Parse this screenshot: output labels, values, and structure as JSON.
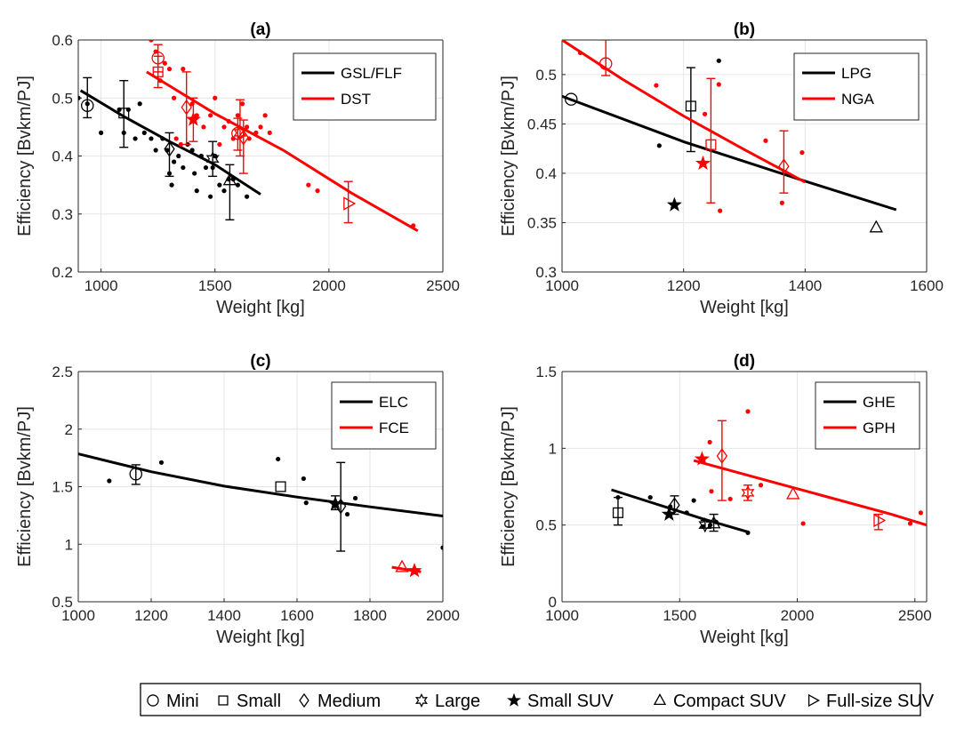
{
  "colors": {
    "black": "#000000",
    "red": "#ff0000",
    "axis": "#262626",
    "grid": "#e6e6e6"
  },
  "shared_legend": {
    "items": [
      {
        "marker": "circle",
        "label": "Mini"
      },
      {
        "marker": "square",
        "label": "Small"
      },
      {
        "marker": "diamond",
        "label": "Medium"
      },
      {
        "marker": "hexagram",
        "label": "Large"
      },
      {
        "marker": "pentagram",
        "label": "Small SUV"
      },
      {
        "marker": "triangle-up",
        "label": "Compact SUV"
      },
      {
        "marker": "triangle-right",
        "label": "Full-size SUV"
      }
    ]
  },
  "chart_data": [
    {
      "type": "scatter",
      "title": "(a)",
      "xlabel": "Weight [kg]",
      "ylabel": "Efficiency [Bvkm/PJ]",
      "xlim": [
        900,
        2500
      ],
      "ylim": [
        0.2,
        0.6
      ],
      "xticks": [
        1000,
        1500,
        2000,
        2500
      ],
      "xtick_labels": [
        "1000",
        "1500",
        "2000",
        "2500"
      ],
      "yticks": [
        0.2,
        0.3,
        0.4,
        0.5,
        0.6
      ],
      "ytick_labels": [
        "0.2",
        "0.3",
        "0.4",
        "0.5",
        "0.6"
      ],
      "grid": true,
      "legend": "top-right",
      "series": [
        {
          "name": "GSL/FLF",
          "color": "#000000",
          "fit": [
            [
              910,
              0.513
            ],
            [
              1100,
              0.468
            ],
            [
              1300,
              0.425
            ],
            [
              1500,
              0.385
            ],
            [
              1700,
              0.334
            ]
          ],
          "points": [
            [
              900,
              0.5
            ],
            [
              940,
              0.49
            ],
            [
              1000,
              0.44
            ],
            [
              1080,
              0.48
            ],
            [
              1100,
              0.44
            ],
            [
              1120,
              0.48
            ],
            [
              1150,
              0.43
            ],
            [
              1170,
              0.49
            ],
            [
              1190,
              0.44
            ],
            [
              1220,
              0.43
            ],
            [
              1240,
              0.41
            ],
            [
              1270,
              0.43
            ],
            [
              1290,
              0.41
            ],
            [
              1300,
              0.37
            ],
            [
              1310,
              0.35
            ],
            [
              1320,
              0.39
            ],
            [
              1340,
              0.4
            ],
            [
              1360,
              0.38
            ],
            [
              1380,
              0.42
            ],
            [
              1400,
              0.41
            ],
            [
              1410,
              0.37
            ],
            [
              1420,
              0.34
            ],
            [
              1440,
              0.4
            ],
            [
              1460,
              0.38
            ],
            [
              1480,
              0.33
            ],
            [
              1490,
              0.38
            ],
            [
              1500,
              0.4
            ],
            [
              1520,
              0.35
            ],
            [
              1540,
              0.34
            ],
            [
              1560,
              0.36
            ],
            [
              1580,
              0.36
            ],
            [
              1600,
              0.35
            ],
            [
              1640,
              0.33
            ]
          ],
          "class_markers": [
            {
              "marker": "circle",
              "x": 940,
              "y": 0.487,
              "lo": 0.466,
              "hi": 0.535
            },
            {
              "marker": "square",
              "x": 1100,
              "y": 0.474,
              "lo": 0.415,
              "hi": 0.53
            },
            {
              "marker": "diamond",
              "x": 1300,
              "y": 0.412,
              "lo": 0.365,
              "hi": 0.44
            },
            {
              "marker": "hexagram",
              "x": 1490,
              "y": 0.395,
              "lo": 0.365,
              "hi": 0.425
            },
            {
              "marker": "triangle-up",
              "x": 1565,
              "y": 0.358,
              "lo": 0.29,
              "hi": 0.385
            }
          ]
        },
        {
          "name": "DST",
          "color": "#ff0000",
          "fit": [
            [
              1200,
              0.545
            ],
            [
              1500,
              0.473
            ],
            [
              1800,
              0.41
            ],
            [
              2100,
              0.336
            ],
            [
              2390,
              0.271
            ]
          ],
          "points": [
            [
              1220,
              0.6
            ],
            [
              1240,
              0.58
            ],
            [
              1260,
              0.53
            ],
            [
              1280,
              0.56
            ],
            [
              1300,
              0.55
            ],
            [
              1320,
              0.5
            ],
            [
              1330,
              0.43
            ],
            [
              1350,
              0.42
            ],
            [
              1360,
              0.55
            ],
            [
              1400,
              0.49
            ],
            [
              1420,
              0.47
            ],
            [
              1450,
              0.45
            ],
            [
              1480,
              0.47
            ],
            [
              1500,
              0.5
            ],
            [
              1520,
              0.42
            ],
            [
              1540,
              0.45
            ],
            [
              1560,
              0.46
            ],
            [
              1580,
              0.43
            ],
            [
              1600,
              0.47
            ],
            [
              1620,
              0.49
            ],
            [
              1640,
              0.45
            ],
            [
              1650,
              0.43
            ],
            [
              1680,
              0.44
            ],
            [
              1700,
              0.45
            ],
            [
              1720,
              0.47
            ],
            [
              1740,
              0.44
            ],
            [
              1910,
              0.35
            ],
            [
              1950,
              0.34
            ],
            [
              2370,
              0.28
            ]
          ],
          "class_markers": [
            {
              "marker": "circle",
              "x": 1250,
              "y": 0.569,
              "lo": 0.545,
              "hi": 0.592
            },
            {
              "marker": "square",
              "x": 1250,
              "y": 0.545,
              "lo": 0.518,
              "hi": 0.572
            },
            {
              "marker": "diamond",
              "x": 1375,
              "y": 0.484,
              "lo": 0.42,
              "hi": 0.545
            },
            {
              "marker": "pentagram",
              "x": 1405,
              "y": 0.463,
              "lo": 0.425,
              "hi": 0.5
            },
            {
              "marker": "circle",
              "x": 1600,
              "y": 0.439,
              "lo": 0.41,
              "hi": 0.465
            },
            {
              "marker": "hexagram",
              "x": 1610,
              "y": 0.44,
              "lo": 0.4,
              "hi": 0.497
            },
            {
              "marker": "diamond",
              "x": 1625,
              "y": 0.432,
              "lo": 0.37,
              "hi": 0.462
            },
            {
              "marker": "triangle-right",
              "x": 2085,
              "y": 0.318,
              "lo": 0.285,
              "hi": 0.356
            }
          ]
        }
      ]
    },
    {
      "type": "scatter",
      "title": "(b)",
      "xlabel": "Weight [kg]",
      "ylabel": "Efficiency [Bvkm/PJ]",
      "xlim": [
        1000,
        1600
      ],
      "ylim": [
        0.3,
        0.535
      ],
      "xticks": [
        1000,
        1200,
        1400,
        1600
      ],
      "xtick_labels": [
        "1000",
        "1200",
        "1400",
        "1600"
      ],
      "yticks": [
        0.3,
        0.35,
        0.4,
        0.45,
        0.5
      ],
      "ytick_labels": [
        "0.3",
        "0.35",
        "0.4",
        "0.45",
        "0.5"
      ],
      "grid": true,
      "legend": "top-right",
      "series": [
        {
          "name": "LPG",
          "color": "#000000",
          "fit": [
            [
              1000,
              0.478
            ],
            [
              1200,
              0.432
            ],
            [
              1400,
              0.392
            ],
            [
              1550,
              0.363
            ]
          ],
          "points": [
            [
              1160,
              0.428
            ],
            [
              1258,
              0.514
            ]
          ],
          "class_markers": [
            {
              "marker": "circle",
              "x": 1015,
              "y": 0.475
            },
            {
              "marker": "square",
              "x": 1212,
              "y": 0.468,
              "lo": 0.422,
              "hi": 0.507
            },
            {
              "marker": "pentagram",
              "x": 1185,
              "y": 0.368
            },
            {
              "marker": "triangle-up",
              "x": 1517,
              "y": 0.345
            }
          ]
        },
        {
          "name": "NGA",
          "color": "#ff0000",
          "fit": [
            [
              1000,
              0.535
            ],
            [
              1100,
              0.495
            ],
            [
              1200,
              0.458
            ],
            [
              1300,
              0.424
            ],
            [
              1400,
              0.391
            ]
          ],
          "points": [
            [
              1030,
              0.522
            ],
            [
              1155,
              0.489
            ],
            [
              1235,
              0.46
            ],
            [
              1258,
              0.49
            ],
            [
              1260,
              0.362
            ],
            [
              1335,
              0.433
            ],
            [
              1362,
              0.37
            ],
            [
              1395,
              0.421
            ]
          ],
          "class_markers": [
            {
              "marker": "circle",
              "x": 1072,
              "y": 0.511,
              "lo": 0.499,
              "hi": 0.535
            },
            {
              "marker": "square",
              "x": 1245,
              "y": 0.429,
              "lo": 0.37,
              "hi": 0.496
            },
            {
              "marker": "pentagram",
              "x": 1232,
              "y": 0.41
            },
            {
              "marker": "diamond",
              "x": 1365,
              "y": 0.407,
              "lo": 0.38,
              "hi": 0.443
            }
          ]
        }
      ]
    },
    {
      "type": "scatter",
      "title": "(c)",
      "xlabel": "Weight [kg]",
      "ylabel": "Efficiency [Bvkm/PJ]",
      "xlim": [
        1000,
        2000
      ],
      "ylim": [
        0.5,
        2.5
      ],
      "xticks": [
        1000,
        1200,
        1400,
        1600,
        1800,
        2000
      ],
      "xtick_labels": [
        "1000",
        "1200",
        "1400",
        "1600",
        "1800",
        "2000"
      ],
      "yticks": [
        0.5,
        1,
        1.5,
        2,
        2.5
      ],
      "ytick_labels": [
        "0.5",
        "1",
        "1.5",
        "2",
        "2.5"
      ],
      "grid": true,
      "legend": "top-right",
      "series": [
        {
          "name": "ELC",
          "color": "#000000",
          "fit": [
            [
              1000,
              1.785
            ],
            [
              1200,
              1.63
            ],
            [
              1400,
              1.505
            ],
            [
              1600,
              1.41
            ],
            [
              1800,
              1.325
            ],
            [
              2000,
              1.245
            ]
          ],
          "points": [
            [
              1085,
              1.55
            ],
            [
              1228,
              1.71
            ],
            [
              1548,
              1.74
            ],
            [
              1618,
              1.57
            ],
            [
              1625,
              1.36
            ],
            [
              1738,
              1.26
            ],
            [
              1760,
              1.4
            ],
            [
              2000,
              0.97
            ]
          ],
          "class_markers": [
            {
              "marker": "circle",
              "x": 1158,
              "y": 1.61,
              "lo": 1.52,
              "hi": 1.69
            },
            {
              "marker": "square",
              "x": 1555,
              "y": 1.5
            },
            {
              "marker": "pentagram",
              "x": 1705,
              "y": 1.35,
              "lo": 1.3,
              "hi": 1.42
            },
            {
              "marker": "diamond",
              "x": 1720,
              "y": 1.33,
              "lo": 0.94,
              "hi": 1.71
            }
          ]
        },
        {
          "name": "FCE",
          "color": "#ff0000",
          "fit": [
            [
              1860,
              0.8
            ],
            [
              1940,
              0.76
            ]
          ],
          "points": [],
          "class_markers": [
            {
              "marker": "triangle-up",
              "x": 1888,
              "y": 0.8
            },
            {
              "marker": "pentagram",
              "x": 1922,
              "y": 0.77
            }
          ]
        }
      ]
    },
    {
      "type": "scatter",
      "title": "(d)",
      "xlabel": "Weight [kg]",
      "ylabel": "Efficiency [Bvkm/PJ]",
      "xlim": [
        1000,
        2550
      ],
      "ylim": [
        0,
        1.5
      ],
      "xticks": [
        1000,
        1500,
        2000,
        2500
      ],
      "xtick_labels": [
        "1000",
        "1500",
        "2000",
        "2500"
      ],
      "yticks": [
        0,
        0.5,
        1,
        1.5
      ],
      "ytick_labels": [
        "0",
        "0.5",
        "1",
        "1.5"
      ],
      "grid": true,
      "legend": "top-right",
      "series": [
        {
          "name": "GHE",
          "color": "#000000",
          "fit": [
            [
              1210,
              0.73
            ],
            [
              1400,
              0.637
            ],
            [
              1600,
              0.54
            ],
            [
              1790,
              0.455
            ]
          ],
          "points": [
            [
              1238,
              0.68
            ],
            [
              1375,
              0.68
            ],
            [
              1460,
              0.62
            ],
            [
              1530,
              0.58
            ],
            [
              1560,
              0.66
            ],
            [
              1600,
              0.49
            ],
            [
              1630,
              0.5
            ],
            [
              1655,
              0.52
            ],
            [
              1790,
              0.45
            ]
          ],
          "class_markers": [
            {
              "marker": "square",
              "x": 1238,
              "y": 0.58,
              "lo": 0.5,
              "hi": 0.68
            },
            {
              "marker": "diamond",
              "x": 1478,
              "y": 0.63,
              "lo": 0.57,
              "hi": 0.69
            },
            {
              "marker": "pentagram",
              "x": 1455,
              "y": 0.57
            },
            {
              "marker": "hexagram",
              "x": 1608,
              "y": 0.5,
              "lo": 0.48,
              "hi": 0.53
            },
            {
              "marker": "triangle-up",
              "x": 1645,
              "y": 0.51,
              "lo": 0.46,
              "hi": 0.57
            }
          ]
        },
        {
          "name": "GPH",
          "color": "#ff0000",
          "fit": [
            [
              1560,
              0.92
            ],
            [
              1800,
              0.82
            ],
            [
              2100,
              0.695
            ],
            [
              2400,
              0.57
            ],
            [
              2550,
              0.5
            ]
          ],
          "points": [
            [
              1628,
              1.04
            ],
            [
              1635,
              0.72
            ],
            [
              1715,
              0.67
            ],
            [
              1790,
              1.24
            ],
            [
              1845,
              0.76
            ],
            [
              2025,
              0.51
            ],
            [
              2480,
              0.51
            ],
            [
              2525,
              0.58
            ]
          ],
          "class_markers": [
            {
              "marker": "pentagram",
              "x": 1595,
              "y": 0.93
            },
            {
              "marker": "diamond",
              "x": 1680,
              "y": 0.95,
              "lo": 0.66,
              "hi": 1.18
            },
            {
              "marker": "hexagram",
              "x": 1790,
              "y": 0.71,
              "lo": 0.66,
              "hi": 0.76
            },
            {
              "marker": "triangle-up",
              "x": 1982,
              "y": 0.7
            },
            {
              "marker": "triangle-right",
              "x": 2345,
              "y": 0.53,
              "lo": 0.47,
              "hi": 0.57
            }
          ]
        }
      ]
    }
  ]
}
